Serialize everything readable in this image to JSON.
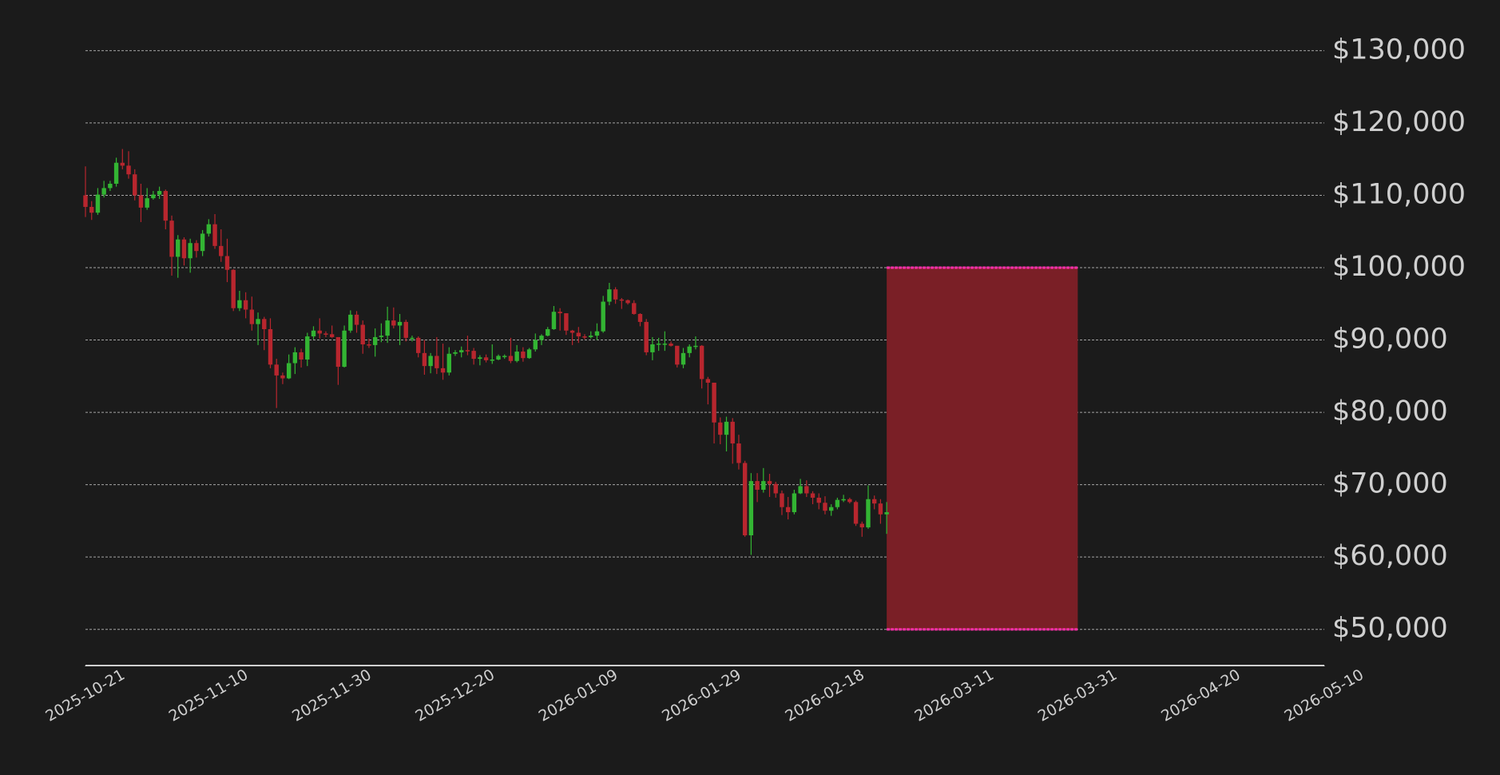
{
  "chart_data": {
    "type": "candlestick",
    "x": [
      "2025-10-21",
      "2025-10-22",
      "2025-10-23",
      "2025-10-24",
      "2025-10-25",
      "2025-10-26",
      "2025-10-27",
      "2025-10-28",
      "2025-10-29",
      "2025-10-30",
      "2025-10-31",
      "2025-11-01",
      "2025-11-02",
      "2025-11-03",
      "2025-11-04",
      "2025-11-05",
      "2025-11-06",
      "2025-11-07",
      "2025-11-08",
      "2025-11-09",
      "2025-11-10",
      "2025-11-11",
      "2025-11-12",
      "2025-11-13",
      "2025-11-14",
      "2025-11-15",
      "2025-11-16",
      "2025-11-17",
      "2025-11-18",
      "2025-11-19",
      "2025-11-20",
      "2025-11-21",
      "2025-11-22",
      "2025-11-23",
      "2025-11-24",
      "2025-11-25",
      "2025-11-26",
      "2025-11-27",
      "2025-11-28",
      "2025-11-29",
      "2025-11-30",
      "2025-12-01",
      "2025-12-02",
      "2025-12-03",
      "2025-12-04",
      "2025-12-05",
      "2025-12-06",
      "2025-12-07",
      "2025-12-08",
      "2025-12-09",
      "2025-12-10",
      "2025-12-11",
      "2025-12-12",
      "2025-12-13",
      "2025-12-14",
      "2025-12-15",
      "2025-12-16",
      "2025-12-17",
      "2025-12-18",
      "2025-12-19",
      "2025-12-20",
      "2025-12-21",
      "2025-12-22",
      "2025-12-23",
      "2025-12-24",
      "2025-12-25",
      "2025-12-26",
      "2025-12-27",
      "2025-12-28",
      "2025-12-29",
      "2025-12-30",
      "2025-12-31",
      "2026-01-01",
      "2026-01-02",
      "2026-01-03",
      "2026-01-04",
      "2026-01-05",
      "2026-01-06",
      "2026-01-07",
      "2026-01-08",
      "2026-01-09",
      "2026-01-10",
      "2026-01-11",
      "2026-01-12",
      "2026-01-13",
      "2026-01-14",
      "2026-01-15",
      "2026-01-16",
      "2026-01-17",
      "2026-01-18",
      "2026-01-19",
      "2026-01-20",
      "2026-01-21",
      "2026-01-22",
      "2026-01-23",
      "2026-01-24",
      "2026-01-25",
      "2026-01-26",
      "2026-01-27",
      "2026-01-28",
      "2026-01-29",
      "2026-01-30",
      "2026-01-31",
      "2026-02-01",
      "2026-02-02",
      "2026-02-03",
      "2026-02-04",
      "2026-02-05",
      "2026-02-06",
      "2026-02-07",
      "2026-02-08",
      "2026-02-09",
      "2026-02-10",
      "2026-02-11",
      "2026-02-12",
      "2026-02-13",
      "2026-02-14",
      "2026-02-15",
      "2026-02-16",
      "2026-02-17",
      "2026-02-18",
      "2026-02-19",
      "2026-02-20",
      "2026-02-21",
      "2026-02-22",
      "2026-02-23",
      "2026-02-24",
      "2026-02-25",
      "2026-02-26",
      "2026-02-27",
      "2026-02-28"
    ],
    "open": [
      110000,
      108400,
      107600,
      110100,
      111000,
      111600,
      114500,
      114100,
      112900,
      110000,
      108300,
      109600,
      110100,
      110600,
      106500,
      101500,
      103900,
      101300,
      103400,
      102300,
      104700,
      106000,
      103000,
      101600,
      99700,
      94400,
      95500,
      94200,
      92200,
      92900,
      91500,
      86600,
      85100,
      84700,
      86800,
      88300,
      87300,
      90500,
      91300,
      90900,
      90800,
      90400,
      86300,
      91300,
      93500,
      92100,
      89400,
      89300,
      90400,
      90600,
      92700,
      92000,
      92500,
      90300,
      90300,
      88200,
      86400,
      87800,
      86100,
      85500,
      88100,
      88300,
      88600,
      88500,
      87400,
      87600,
      87200,
      87300,
      87800,
      87800,
      87100,
      88400,
      87500,
      88700,
      90000,
      90600,
      91500,
      93900,
      93700,
      91300,
      91000,
      90500,
      90400,
      90600,
      91200,
      95300,
      97000,
      95600,
      95500,
      95100,
      93600,
      92500,
      88300,
      89400,
      89500,
      89500,
      89200,
      86600,
      88200,
      89100,
      89200,
      84600,
      84100,
      78600,
      76900,
      78700,
      75700,
      73000,
      63000,
      70500,
      69300,
      70500,
      70100,
      68800,
      66900,
      66200,
      68800,
      69800,
      68800,
      68200,
      67500,
      66400,
      66900,
      67900,
      68000,
      67600,
      64600,
      64100,
      68000,
      67400,
      65900
    ],
    "high": [
      114000,
      109200,
      111000,
      112000,
      112000,
      115200,
      116400,
      116100,
      113600,
      111600,
      111000,
      110600,
      111200,
      110800,
      107200,
      104500,
      104200,
      104000,
      103800,
      105200,
      106700,
      107400,
      105300,
      104000,
      99800,
      96800,
      96600,
      96000,
      93800,
      93200,
      93000,
      87400,
      85500,
      88000,
      89000,
      88800,
      91000,
      91900,
      93000,
      91200,
      92000,
      90400,
      92000,
      94100,
      94000,
      92700,
      90200,
      91600,
      92300,
      94600,
      94500,
      93600,
      92800,
      90600,
      90500,
      90000,
      88200,
      90400,
      89500,
      89000,
      88600,
      89100,
      90600,
      88900,
      87900,
      88000,
      89400,
      88000,
      88000,
      90300,
      89300,
      89000,
      88900,
      90900,
      90800,
      91800,
      94700,
      94400,
      93700,
      91400,
      91800,
      90800,
      91200,
      92300,
      96100,
      97900,
      97300,
      95800,
      95600,
      95500,
      93700,
      92900,
      90400,
      90300,
      91200,
      89800,
      89200,
      88900,
      89400,
      90500,
      89300,
      84900,
      84100,
      79300,
      79400,
      79200,
      76900,
      73300,
      71600,
      71600,
      72300,
      71500,
      70400,
      69200,
      68300,
      69300,
      70800,
      70600,
      69100,
      68800,
      68400,
      67300,
      68200,
      68600,
      68200,
      67800,
      64900,
      69900,
      68500,
      68000,
      67600
    ],
    "low": [
      107000,
      106600,
      107300,
      109700,
      110600,
      111200,
      113600,
      112300,
      109300,
      106300,
      108000,
      109400,
      109500,
      105300,
      98900,
      98600,
      100300,
      99300,
      101400,
      101600,
      104300,
      102600,
      100800,
      98000,
      94000,
      94000,
      93000,
      91300,
      89300,
      88600,
      86100,
      80600,
      83900,
      84600,
      85300,
      86200,
      86400,
      90100,
      90200,
      90400,
      90300,
      83800,
      86200,
      91000,
      91000,
      88100,
      88900,
      87700,
      89700,
      89600,
      91600,
      89300,
      89800,
      89800,
      87600,
      85200,
      85400,
      85300,
      84500,
      85100,
      87800,
      87600,
      87900,
      86600,
      86500,
      86900,
      86700,
      87200,
      87400,
      86800,
      86900,
      87000,
      87400,
      88400,
      89300,
      90500,
      91400,
      91300,
      90700,
      89300,
      89600,
      90100,
      90200,
      90000,
      91000,
      94800,
      95000,
      94300,
      94900,
      93500,
      91900,
      87900,
      87200,
      88500,
      88500,
      89100,
      86200,
      86100,
      87600,
      88700,
      83300,
      81100,
      75700,
      75600,
      74600,
      72900,
      72100,
      62800,
      60300,
      67600,
      68900,
      68300,
      68200,
      65800,
      65200,
      65900,
      68700,
      68300,
      67300,
      66600,
      65900,
      65700,
      66600,
      67600,
      67400,
      64300,
      62800,
      63900,
      66600,
      64600,
      63200
    ],
    "close": [
      108400,
      107600,
      110100,
      111000,
      111600,
      114500,
      114100,
      112900,
      110000,
      108300,
      109600,
      110100,
      110600,
      106500,
      101500,
      103900,
      101300,
      103400,
      102300,
      104700,
      106000,
      103000,
      101600,
      99700,
      94400,
      95500,
      94200,
      92200,
      92900,
      91500,
      86600,
      85100,
      84700,
      86800,
      88300,
      87300,
      90500,
      91300,
      90900,
      90800,
      90400,
      86300,
      91300,
      93500,
      92100,
      89400,
      89300,
      90400,
      90600,
      92700,
      92000,
      92500,
      90300,
      90300,
      88200,
      86400,
      87800,
      86100,
      85500,
      88100,
      88300,
      88600,
      88500,
      87400,
      87600,
      87200,
      87300,
      87800,
      87800,
      87100,
      88400,
      87500,
      88700,
      90000,
      90600,
      91500,
      93900,
      93700,
      91300,
      91000,
      90500,
      90400,
      90600,
      91200,
      95300,
      97000,
      95600,
      95500,
      95100,
      93600,
      92500,
      88300,
      89400,
      89500,
      89500,
      89200,
      86600,
      88200,
      89100,
      89200,
      84600,
      84100,
      78600,
      76900,
      78700,
      75700,
      73000,
      63000,
      70500,
      69300,
      70500,
      70100,
      68800,
      66900,
      66200,
      68800,
      69800,
      68800,
      68200,
      67500,
      66400,
      66900,
      67900,
      68000,
      67600,
      64600,
      64100,
      68000,
      67400,
      65900,
      66200
    ],
    "up_color": "#33b533",
    "down_color": "#b8262e",
    "xlim": [
      "2025-10-21",
      "2026-05-10"
    ],
    "xticks": [
      "2025-10-21",
      "2025-11-10",
      "2025-11-30",
      "2025-12-20",
      "2026-01-09",
      "2026-01-29",
      "2026-02-18",
      "2026-03-11",
      "2026-03-31",
      "2026-04-20",
      "2026-05-10"
    ],
    "ylim": [
      45000,
      137000
    ],
    "yticks": [
      {
        "value": 50000,
        "label": "$50,000"
      },
      {
        "value": 60000,
        "label": "$60,000"
      },
      {
        "value": 70000,
        "label": "$70,000"
      },
      {
        "value": 80000,
        "label": "$80,000"
      },
      {
        "value": 90000,
        "label": "$90,000"
      },
      {
        "value": 100000,
        "label": "$100,000"
      },
      {
        "value": 110000,
        "label": "$110,000"
      },
      {
        "value": 120000,
        "label": "$120,000"
      },
      {
        "value": 130000,
        "label": "$130,000"
      }
    ],
    "grid": true,
    "zone": {
      "x": [
        "2026-02-28",
        "2026-03-31"
      ],
      "y": [
        50000,
        100000
      ],
      "color": "#7a1f26",
      "edge_color": "#ff2fa8"
    }
  }
}
